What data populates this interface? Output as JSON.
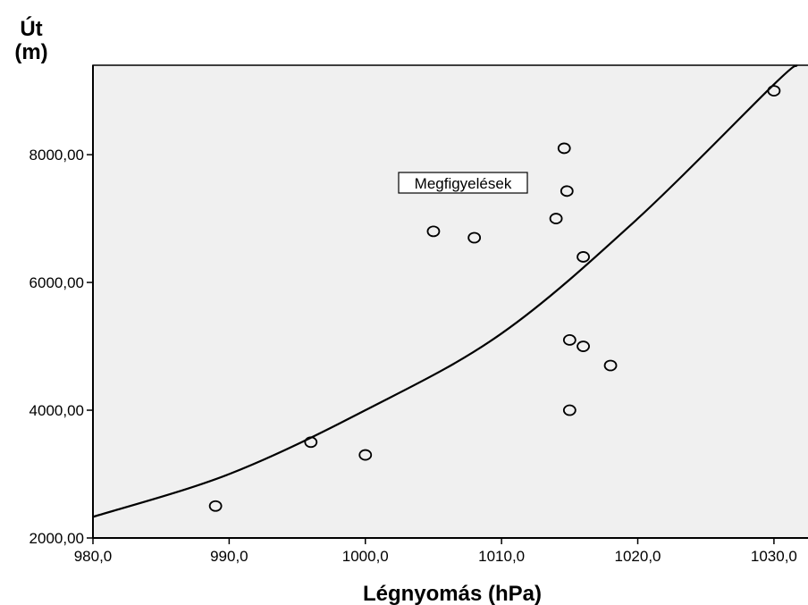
{
  "chart_data": {
    "type": "scatter",
    "xlabel": "Légnyomás (hPa)",
    "ylabel_line1": "Út",
    "ylabel_line2": "(m)",
    "xlim": [
      980,
      1032.5
    ],
    "ylim": [
      2000,
      9400
    ],
    "x_ticks": [
      980,
      990,
      1000,
      1010,
      1020,
      1030
    ],
    "x_tick_labels": [
      "980,0",
      "990,0",
      "1000,0",
      "1010,0",
      "1020,0",
      "1030,0"
    ],
    "y_ticks": [
      2000,
      4000,
      6000,
      8000
    ],
    "y_tick_labels": [
      "2000,00",
      "4000,00",
      "6000,00",
      "8000,00"
    ],
    "grid": false,
    "plot_background": "#f0f0f0",
    "legend": {
      "label": "Megfigyelések",
      "placement": "upper-left-inside"
    },
    "series": [
      {
        "name": "Megfigyelések",
        "points": [
          {
            "x": 989,
            "y": 2500
          },
          {
            "x": 996,
            "y": 3500
          },
          {
            "x": 1000,
            "y": 3300
          },
          {
            "x": 1005,
            "y": 6800
          },
          {
            "x": 1008,
            "y": 6700
          },
          {
            "x": 1014,
            "y": 7000
          },
          {
            "x": 1014.6,
            "y": 8100
          },
          {
            "x": 1014.8,
            "y": 7430
          },
          {
            "x": 1015,
            "y": 5100
          },
          {
            "x": 1015,
            "y": 4000
          },
          {
            "x": 1016,
            "y": 6400
          },
          {
            "x": 1016,
            "y": 5000
          },
          {
            "x": 1018,
            "y": 4700
          },
          {
            "x": 1030,
            "y": 9000
          }
        ]
      }
    ],
    "fit_curve": {
      "type": "exponential",
      "points": [
        {
          "x": 980,
          "y": 2330
        },
        {
          "x": 990,
          "y": 3000
        },
        {
          "x": 1000,
          "y": 4000
        },
        {
          "x": 1010,
          "y": 5200
        },
        {
          "x": 1020,
          "y": 7000
        },
        {
          "x": 1030,
          "y": 9100
        },
        {
          "x": 1031.7,
          "y": 9400
        }
      ]
    }
  }
}
